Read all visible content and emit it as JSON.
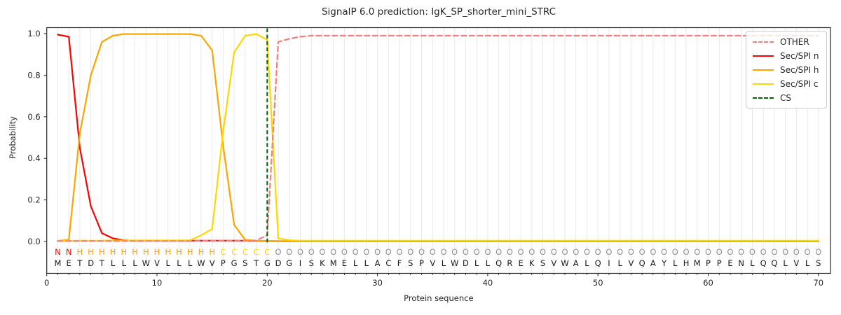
{
  "title": "SignalP 6.0 prediction: IgK_SP_shorter_mini_STRC",
  "chart_data": {
    "type": "line",
    "title": "SignalP 6.0 prediction: IgK_SP_shorter_mini_STRC",
    "xlabel": "Protein sequence",
    "ylabel": "Probability",
    "x_ticks": [
      0,
      10,
      20,
      30,
      40,
      50,
      60,
      70
    ],
    "x_tick_labels": [
      "0",
      "10",
      "20",
      "30",
      "40",
      "50",
      "60",
      "70"
    ],
    "y_ticks": [
      0.0,
      0.2,
      0.4,
      0.6,
      0.8,
      1.0
    ],
    "y_tick_labels": [
      "0.0",
      "0.2",
      "0.4",
      "0.6",
      "0.8",
      "1.0"
    ],
    "xlim": [
      0,
      71
    ],
    "ylim": [
      -0.155,
      1.03
    ],
    "grid": "light vertical gridline at every residue position 1-70",
    "legend_position": "upper right",
    "legend_order": [
      "OTHER",
      "Sec/SPI n",
      "Sec/SPI h",
      "Sec/SPI c",
      "CS"
    ],
    "cs_position": 20,
    "sequence": "METDTLLLWVLLLWVPGSTGDGISKMELLACFSPVLWDLLQREKSVWALQILVQAYLHMPPENLQQLVLS",
    "region_labels": "NNHHHHHHHHHHHHHCCCCCOOOOOOOOOOOOOOOOOOOOOOOOOOOOOOOOOOOOOOOOOOOOOOOOOO",
    "region_colors": {
      "N": "#ff0000",
      "H": "#ffa500",
      "C": "#ffd700",
      "O": "#909090"
    },
    "sequence_color": "#1a1a1a",
    "series": [
      {
        "name": "Sec/SPI n",
        "color": "#ff0000",
        "dash": false,
        "values": [
          0.995,
          0.985,
          0.45,
          0.17,
          0.04,
          0.015,
          0.006,
          0.004,
          0.004,
          0.004,
          0.004,
          0.004,
          0.004,
          0.004,
          0.004,
          0.004,
          0.004,
          0.004,
          0.003,
          0.002,
          0.001,
          0.001,
          0.001,
          0.001,
          0.001,
          0.001,
          0.001,
          0.001,
          0.001,
          0.001,
          0.001,
          0.001,
          0.001,
          0.001,
          0.001,
          0.001,
          0.001,
          0.001,
          0.001,
          0.001,
          0.001,
          0.001,
          0.001,
          0.001,
          0.001,
          0.001,
          0.001,
          0.001,
          0.001,
          0.001,
          0.001,
          0.001,
          0.001,
          0.001,
          0.001,
          0.001,
          0.001,
          0.001,
          0.001,
          0.001,
          0.001,
          0.001,
          0.001,
          0.001,
          0.001,
          0.001,
          0.001,
          0.001,
          0.001,
          0.001
        ]
      },
      {
        "name": "Sec/SPI h",
        "color": "#ffa500",
        "dash": false,
        "values": [
          0.003,
          0.008,
          0.52,
          0.8,
          0.96,
          0.99,
          0.998,
          0.998,
          0.998,
          0.998,
          0.998,
          0.998,
          0.998,
          0.99,
          0.92,
          0.46,
          0.08,
          0.008,
          0.004,
          0.003,
          0.002,
          0.002,
          0.002,
          0.002,
          0.002,
          0.002,
          0.002,
          0.002,
          0.002,
          0.002,
          0.002,
          0.002,
          0.002,
          0.002,
          0.002,
          0.002,
          0.002,
          0.002,
          0.002,
          0.002,
          0.002,
          0.002,
          0.002,
          0.002,
          0.002,
          0.002,
          0.002,
          0.002,
          0.002,
          0.002,
          0.002,
          0.002,
          0.002,
          0.002,
          0.002,
          0.002,
          0.002,
          0.002,
          0.002,
          0.002,
          0.002,
          0.002,
          0.002,
          0.002,
          0.002,
          0.002,
          0.002,
          0.002,
          0.002,
          0.002
        ]
      },
      {
        "name": "Sec/SPI c",
        "color": "#ffd700",
        "dash": false,
        "values": [
          0.002,
          0.003,
          0.004,
          0.004,
          0.004,
          0.005,
          0.005,
          0.005,
          0.005,
          0.005,
          0.005,
          0.005,
          0.006,
          0.03,
          0.06,
          0.53,
          0.91,
          0.99,
          0.998,
          0.97,
          0.015,
          0.006,
          0.004,
          0.004,
          0.004,
          0.004,
          0.004,
          0.004,
          0.004,
          0.004,
          0.004,
          0.004,
          0.004,
          0.004,
          0.004,
          0.004,
          0.004,
          0.004,
          0.004,
          0.004,
          0.004,
          0.004,
          0.004,
          0.004,
          0.004,
          0.004,
          0.004,
          0.004,
          0.004,
          0.004,
          0.004,
          0.004,
          0.004,
          0.004,
          0.004,
          0.004,
          0.004,
          0.004,
          0.004,
          0.004,
          0.004,
          0.004,
          0.004,
          0.004,
          0.004,
          0.004,
          0.004,
          0.004,
          0.004,
          0.004
        ]
      },
      {
        "name": "OTHER",
        "color": "#f08080",
        "dash": true,
        "values": [
          0.002,
          0.002,
          0.002,
          0.002,
          0.002,
          0.002,
          0.002,
          0.002,
          0.002,
          0.002,
          0.002,
          0.002,
          0.002,
          0.003,
          0.003,
          0.003,
          0.003,
          0.003,
          0.005,
          0.03,
          0.96,
          0.975,
          0.985,
          0.99,
          0.99,
          0.99,
          0.99,
          0.99,
          0.99,
          0.99,
          0.99,
          0.99,
          0.99,
          0.99,
          0.99,
          0.99,
          0.99,
          0.99,
          0.99,
          0.99,
          0.99,
          0.99,
          0.99,
          0.99,
          0.99,
          0.99,
          0.99,
          0.99,
          0.99,
          0.99,
          0.99,
          0.99,
          0.99,
          0.99,
          0.99,
          0.99,
          0.99,
          0.99,
          0.99,
          0.99,
          0.99,
          0.99,
          0.99,
          0.99,
          0.99,
          0.99,
          0.99,
          0.99,
          0.99,
          0.99
        ]
      },
      {
        "name": "CS",
        "color": "#006400",
        "dash": true,
        "vertical_at": 20
      }
    ],
    "legend": {
      "items": [
        {
          "label": "OTHER"
        },
        {
          "label": "Sec/SPI n"
        },
        {
          "label": "Sec/SPI h"
        },
        {
          "label": "Sec/SPI c"
        },
        {
          "label": "CS"
        }
      ]
    }
  }
}
